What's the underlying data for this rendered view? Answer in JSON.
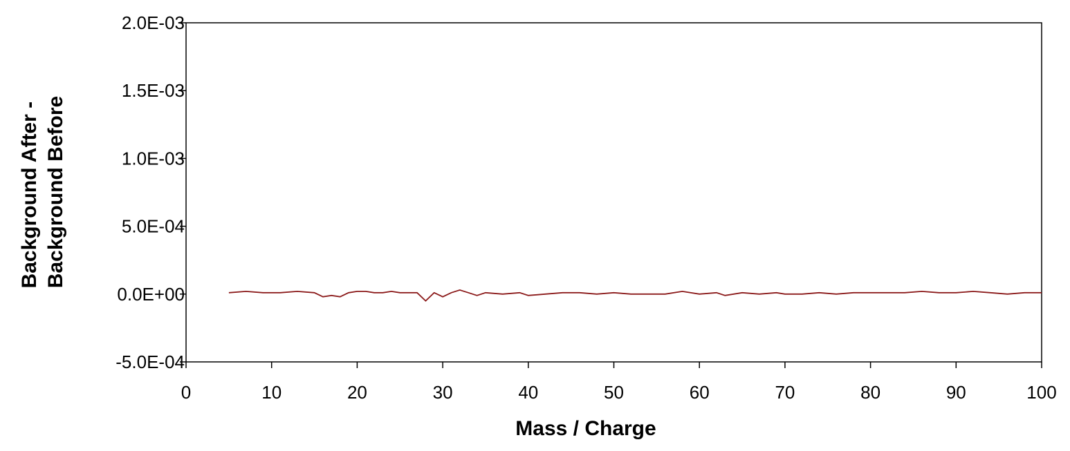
{
  "chart_data": {
    "type": "line",
    "title": "",
    "xlabel": "Mass / Charge",
    "ylabel_lines": [
      "Background After -",
      "Background Before"
    ],
    "xlim": [
      0,
      100
    ],
    "ylim": [
      -0.0005,
      0.002
    ],
    "x_ticks": [
      0,
      10,
      20,
      30,
      40,
      50,
      60,
      70,
      80,
      90,
      100
    ],
    "x_tick_labels": [
      "0",
      "10",
      "20",
      "30",
      "40",
      "50",
      "60",
      "70",
      "80",
      "90",
      "100"
    ],
    "y_ticks": [
      -0.0005,
      0,
      0.0005,
      0.001,
      0.0015,
      0.002
    ],
    "y_tick_labels": [
      "-5.0E-04",
      "0.0E+00",
      "5.0E-04",
      "1.0E-03",
      "1.5E-03",
      "2.0E-03"
    ],
    "grid": false,
    "legend": "none",
    "line_color": "#8B1A1A",
    "series": [
      {
        "x": [
          5,
          7,
          9,
          11,
          13,
          15,
          16,
          17,
          18,
          19,
          20,
          21,
          22,
          23,
          24,
          25,
          26,
          27,
          28,
          29,
          30,
          31,
          32,
          33,
          34,
          35,
          37,
          39,
          40,
          42,
          44,
          46,
          48,
          50,
          52,
          54,
          56,
          58,
          60,
          62,
          63,
          65,
          67,
          69,
          70,
          72,
          74,
          76,
          78,
          80,
          82,
          84,
          86,
          88,
          90,
          92,
          94,
          96,
          98,
          100
        ],
        "y": [
          1e-05,
          2e-05,
          1e-05,
          1e-05,
          2e-05,
          1e-05,
          -2e-05,
          -1e-05,
          -2e-05,
          1e-05,
          2e-05,
          2e-05,
          1e-05,
          1e-05,
          2e-05,
          1e-05,
          1e-05,
          1e-05,
          -5e-05,
          1e-05,
          -2e-05,
          1e-05,
          3e-05,
          1e-05,
          -1e-05,
          1e-05,
          0.0,
          1e-05,
          -1e-05,
          0.0,
          1e-05,
          1e-05,
          0.0,
          1e-05,
          0.0,
          0.0,
          0.0,
          2e-05,
          0.0,
          1e-05,
          -1e-05,
          1e-05,
          0.0,
          1e-05,
          0.0,
          0.0,
          1e-05,
          0.0,
          1e-05,
          1e-05,
          1e-05,
          1e-05,
          2e-05,
          1e-05,
          1e-05,
          2e-05,
          1e-05,
          0.0,
          1e-05,
          1e-05
        ]
      }
    ]
  }
}
